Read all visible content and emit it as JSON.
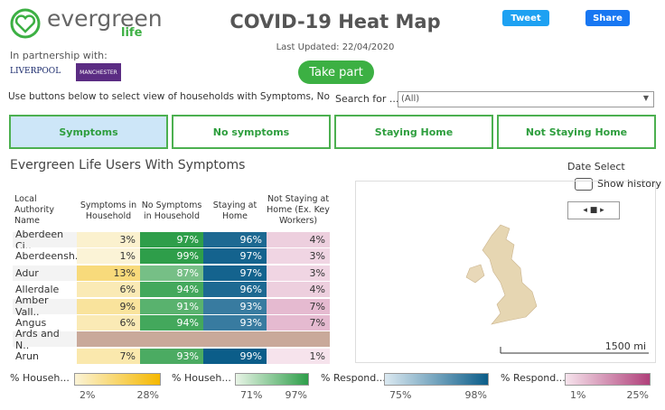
{
  "header": {
    "logo": "evergreen",
    "logo_sub": "life",
    "partnership": "In partnership with:",
    "partners": [
      "LIVERPOOL",
      "MANCHESTER"
    ],
    "title": "COVID-19 Heat Map",
    "updated": "Last Updated: 22/04/2020",
    "tweet": "Tweet",
    "share": "Share",
    "take_part": "Take part"
  },
  "instructions": "Use buttons below to select view of households with Symptoms, No",
  "search": {
    "label": "Search for ...",
    "value": "(All)"
  },
  "tabs": [
    "Symptoms",
    "No symptoms",
    "Staying Home",
    "Not Staying Home"
  ],
  "section_title": "Evergreen Life Users With Symptoms",
  "date_select": {
    "label": "Date Select",
    "toggle": "Show history"
  },
  "table": {
    "columns": [
      "Local Authority Name",
      "Symptoms in Household",
      "No Symptoms in Household",
      "Staying at Home",
      "Not Staying at Home (Ex. Key Workers)"
    ],
    "rows": [
      [
        "Aberdeen Ci..",
        "3%",
        "97%",
        "96%",
        "4%"
      ],
      [
        "Aberdeensh..",
        "1%",
        "99%",
        "97%",
        "3%"
      ],
      [
        "Adur",
        "13%",
        "87%",
        "97%",
        "3%"
      ],
      [
        "Allerdale",
        "6%",
        "94%",
        "96%",
        "4%"
      ],
      [
        "Amber Vall..",
        "9%",
        "91%",
        "93%",
        "7%"
      ],
      [
        "Angus",
        "6%",
        "94%",
        "93%",
        "7%"
      ],
      [
        "Ards and N..",
        null,
        null,
        null,
        null
      ],
      [
        "Arun",
        "7%",
        "93%",
        "99%",
        "1%"
      ]
    ]
  },
  "map": {
    "scale": "1500 mi"
  },
  "legends": [
    {
      "label": "% Househ...",
      "min": "2%",
      "max": "28%"
    },
    {
      "label": "% Househ...",
      "min": "71%",
      "max": "97%"
    },
    {
      "label": "% Respond...",
      "min": "75%",
      "max": "98%"
    },
    {
      "label": "% Respond...",
      "min": "1%",
      "max": "25%"
    }
  ]
}
